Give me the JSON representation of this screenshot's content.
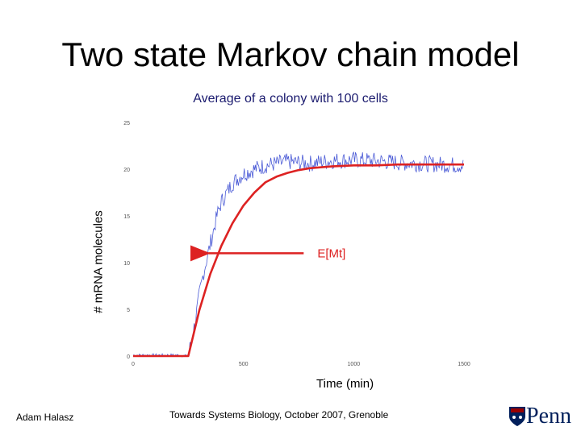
{
  "slide": {
    "title": "Two state Markov chain model",
    "footer_left": "Adam Halasz",
    "footer_center": "Towards Systems Biology, October 2007, Grenoble",
    "logo_text": "Penn"
  },
  "colors": {
    "noisy": "#4a5ad6",
    "mean": "#dd2222",
    "logo_blue": "#011f5b",
    "logo_red": "#990000"
  },
  "chart_data": {
    "type": "line",
    "title": "Average of a colony with 100 cells",
    "xlabel": "Time (min)",
    "ylabel": "# mRNA molecules",
    "xlim": [
      0,
      1500
    ],
    "ylim": [
      0,
      25
    ],
    "xticks": [
      0,
      500,
      1000,
      1500
    ],
    "yticks": [
      0,
      5,
      10,
      15,
      20,
      25
    ],
    "x_tick_labels": [
      "0",
      "500",
      "1000",
      "1500"
    ],
    "y_tick_labels": [
      "0",
      "5",
      "10",
      "15",
      "20",
      "25"
    ],
    "series": [
      {
        "style": "noisy",
        "x": [
          0,
          100,
          200,
          250,
          280,
          300,
          320,
          340,
          360,
          380,
          400,
          450,
          500,
          550,
          600,
          700,
          800,
          900,
          1000,
          1100,
          1200,
          1300,
          1400,
          1500
        ],
        "values": [
          0.1,
          0.1,
          0.1,
          0.0,
          3.5,
          6.5,
          9.0,
          11.0,
          13.0,
          15.0,
          16.5,
          18.5,
          19.5,
          20.0,
          20.4,
          20.8,
          20.6,
          20.9,
          21.0,
          20.9,
          20.7,
          20.6,
          20.5,
          20.4
        ]
      },
      {
        "style": "mean",
        "name": "E[Mt]",
        "x": [
          0,
          250,
          300,
          350,
          400,
          450,
          500,
          550,
          600,
          650,
          700,
          750,
          800,
          900,
          1000,
          1100,
          1200,
          1300,
          1400,
          1500
        ],
        "values": [
          0,
          0,
          4.9,
          8.8,
          11.8,
          14.2,
          16.1,
          17.5,
          18.6,
          19.2,
          19.6,
          19.9,
          20.1,
          20.3,
          20.4,
          20.4,
          20.5,
          20.5,
          20.5,
          20.5
        ]
      }
    ],
    "annotation": {
      "text": "E[Mt]",
      "x": 1000,
      "y": 11
    }
  }
}
